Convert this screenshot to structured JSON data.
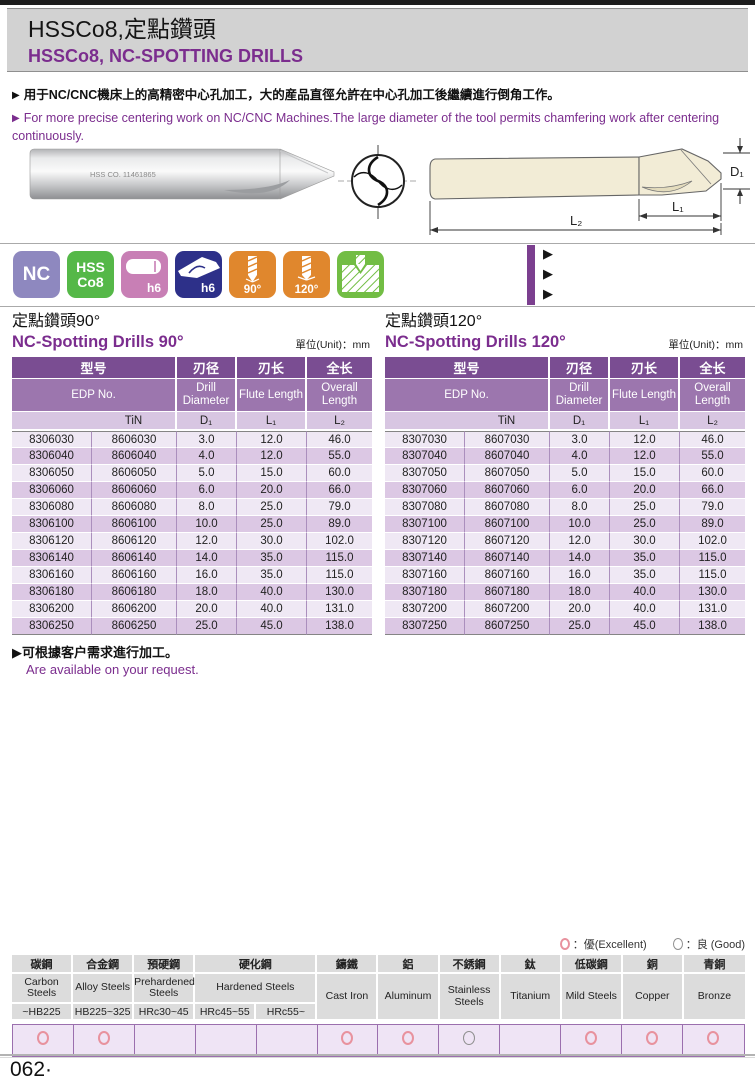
{
  "header": {
    "title_zh": "HSSCo8,定點鑽頭",
    "title_en": "HSSCo8, NC-SPOTTING DRILLS"
  },
  "intro": {
    "bullet_zh": "用于NC/CNC機床上的高精密中心孔加工，大的産品直徑允許在中心孔加工後繼續進行倒角工作。",
    "bullet_en": "For more precise centering work on NC/CNC Machines.The large diameter of the tool permits chamfering work after centering continuously."
  },
  "markers": {
    "arrow": "▶"
  },
  "images": {
    "photo_etch_text": "HSS CO. 11461865",
    "dim_labels": {
      "d1": "D₁",
      "l1": "L₁",
      "l2": "L₂"
    }
  },
  "icons": [
    {
      "name": "nc",
      "label": "NC",
      "color": "#8e88bf"
    },
    {
      "name": "hss-co8",
      "label_line1": "HSS",
      "label_line2": "Co8",
      "color": "#55b848"
    },
    {
      "name": "shank-h6",
      "label": "h6",
      "color": "#c87fb5"
    },
    {
      "name": "drill-h6",
      "label": "h6",
      "color": "#2d3089"
    },
    {
      "name": "point-angle-90",
      "label": "90°",
      "color": "#e0872d"
    },
    {
      "name": "point-angle-120",
      "label": "120°",
      "color": "#e0872d"
    },
    {
      "name": "spotting-work",
      "label": "",
      "color": "#72bd44"
    }
  ],
  "tables": [
    {
      "title_zh": "定點鑽頭90°",
      "title_en": "NC-Spotting Drills 90°",
      "unit": "單位(Unit)：mm",
      "head": {
        "model_zh": "型号",
        "model_en": "EDP No.",
        "coating": "TiN",
        "dia_zh": "刃径",
        "dia_en": "Drill Diameter",
        "dia_sym": "D₁",
        "flute_zh": "刃长",
        "flute_en": "Flute Length",
        "flute_sym": "L₁",
        "oal_zh": "全长",
        "oal_en": "Overall Length",
        "oal_sym": "L₂"
      },
      "rows": [
        [
          "8306030",
          "8606030",
          "3.0",
          "12.0",
          "46.0"
        ],
        [
          "8306040",
          "8606040",
          "4.0",
          "12.0",
          "55.0"
        ],
        [
          "8306050",
          "8606050",
          "5.0",
          "15.0",
          "60.0"
        ],
        [
          "8306060",
          "8606060",
          "6.0",
          "20.0",
          "66.0"
        ],
        [
          "8306080",
          "8606080",
          "8.0",
          "25.0",
          "79.0"
        ],
        [
          "8306100",
          "8606100",
          "10.0",
          "25.0",
          "89.0"
        ],
        [
          "8306120",
          "8606120",
          "12.0",
          "30.0",
          "102.0"
        ],
        [
          "8306140",
          "8606140",
          "14.0",
          "35.0",
          "115.0"
        ],
        [
          "8306160",
          "8606160",
          "16.0",
          "35.0",
          "115.0"
        ],
        [
          "8306180",
          "8606180",
          "18.0",
          "40.0",
          "130.0"
        ],
        [
          "8306200",
          "8606200",
          "20.0",
          "40.0",
          "131.0"
        ],
        [
          "8306250",
          "8606250",
          "25.0",
          "45.0",
          "138.0"
        ]
      ]
    },
    {
      "title_zh": "定點鑽頭120°",
      "title_en": "NC-Spotting Drills 120°",
      "unit": "單位(Unit)：mm",
      "head": {
        "model_zh": "型号",
        "model_en": "EDP No.",
        "coating": "TiN",
        "dia_zh": "刃径",
        "dia_en": "Drill Diameter",
        "dia_sym": "D₁",
        "flute_zh": "刃长",
        "flute_en": "Flute Length",
        "flute_sym": "L₁",
        "oal_zh": "全长",
        "oal_en": "Overall Length",
        "oal_sym": "L₂"
      },
      "rows": [
        [
          "8307030",
          "8607030",
          "3.0",
          "12.0",
          "46.0"
        ],
        [
          "8307040",
          "8607040",
          "4.0",
          "12.0",
          "55.0"
        ],
        [
          "8307050",
          "8607050",
          "5.0",
          "15.0",
          "60.0"
        ],
        [
          "8307060",
          "8607060",
          "6.0",
          "20.0",
          "66.0"
        ],
        [
          "8307080",
          "8607080",
          "8.0",
          "25.0",
          "79.0"
        ],
        [
          "8307100",
          "8607100",
          "10.0",
          "25.0",
          "89.0"
        ],
        [
          "8307120",
          "8607120",
          "12.0",
          "30.0",
          "102.0"
        ],
        [
          "8307140",
          "8607140",
          "14.0",
          "35.0",
          "115.0"
        ],
        [
          "8307160",
          "8607160",
          "16.0",
          "35.0",
          "115.0"
        ],
        [
          "8307180",
          "8607180",
          "18.0",
          "40.0",
          "130.0"
        ],
        [
          "8307200",
          "8607200",
          "20.0",
          "40.0",
          "131.0"
        ],
        [
          "8307250",
          "8607250",
          "25.0",
          "45.0",
          "138.0"
        ]
      ]
    }
  ],
  "note": {
    "zh": "可根據客户需求進行加工。",
    "en": "Are available on your request."
  },
  "legend": {
    "excellent_label": "：優(Excellent)",
    "good_label": "：良 (Good)"
  },
  "materials": {
    "zh": [
      "碳鋼",
      "合金鋼",
      "預硬鋼",
      "硬化鋼",
      "鑄鐵",
      "鋁",
      "不銹鋼",
      "鈦",
      "低碳鋼",
      "銅",
      "青銅"
    ],
    "en": [
      "Carbon Steels",
      "Alloy Steels",
      "Prehardened Steels",
      "Hardened Steels",
      "Cast Iron",
      "Aluminum",
      "Stainless Steels",
      "Titanium",
      "Mild Steels",
      "Copper",
      "Bronze"
    ],
    "hardness": [
      "~HB225",
      "HB225~325",
      "HRc30~45",
      "HRc45~55",
      "HRc55~"
    ],
    "ratings": [
      "excellent",
      "excellent",
      "",
      "",
      "",
      "excellent",
      "excellent",
      "good",
      "",
      "excellent",
      "excellent",
      "excellent"
    ]
  },
  "footer": {
    "page_number": "062·"
  },
  "colors": {
    "accent_purple": "#7b2d8e",
    "table_head_dark": "#7a4d92",
    "table_head_mid": "#9c76ae",
    "table_head_light": "#d8c6e2",
    "row_light": "#efe8f4",
    "row_dark": "#dcc8e4",
    "rating_pink": "#e8929e"
  }
}
